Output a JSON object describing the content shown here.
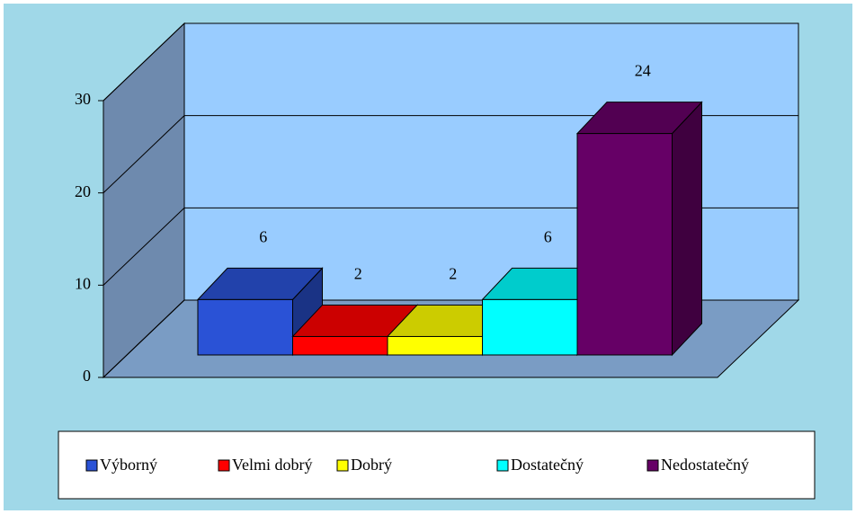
{
  "chart_data": {
    "type": "bar3d",
    "categories": [
      "Výborný",
      "Velmi dobrý",
      "Dobrý",
      "Dostatečný",
      "Nedostatečný"
    ],
    "values": [
      6,
      2,
      2,
      6,
      24
    ],
    "colors": [
      "#2A52D6",
      "#FF0000",
      "#FFFF00",
      "#00FFFF",
      "#660066"
    ],
    "ylim": [
      0,
      30
    ],
    "yticks": [
      0,
      10,
      20,
      30
    ],
    "grid": true,
    "legend": "bottom"
  }
}
